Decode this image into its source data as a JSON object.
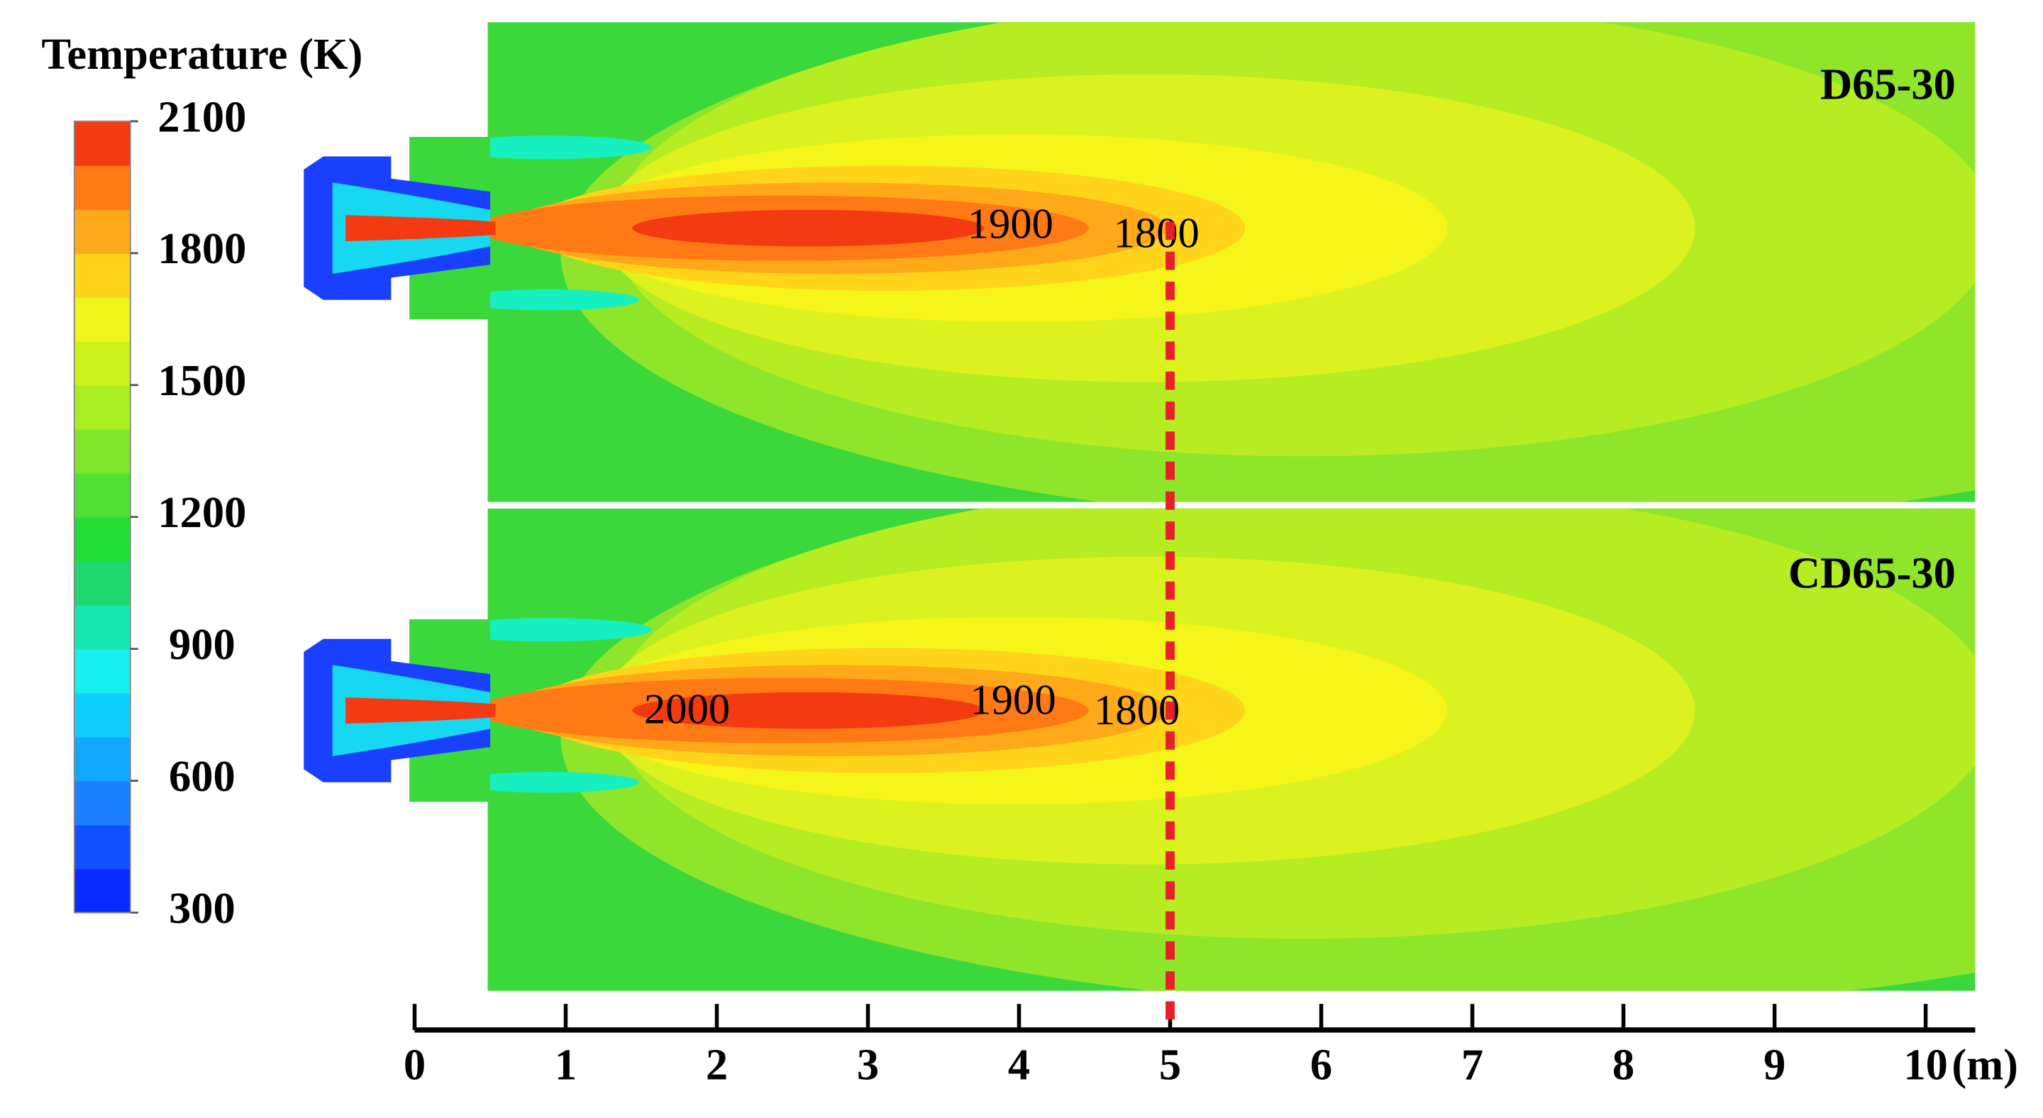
{
  "chart_data": {
    "type": "contour",
    "colorbar": {
      "title": "Temperature (K)",
      "clim": [
        300,
        2100
      ],
      "ticks": [
        300,
        600,
        900,
        1200,
        1500,
        1800,
        2100
      ],
      "colors": [
        "#0a2bff",
        "#1250ff",
        "#1a80ff",
        "#11a8ff",
        "#10cfff",
        "#16f0f0",
        "#15e8b0",
        "#20d870",
        "#22dd33",
        "#4ee033",
        "#7ee52a",
        "#a8ee20",
        "#ccf21a",
        "#f0f51a",
        "#ffd419",
        "#ffa818",
        "#ff7a14",
        "#f33a10"
      ]
    },
    "panels": [
      {
        "label": "D65-30",
        "contour_labels": [
          1900,
          1800
        ]
      },
      {
        "label": "CD65-30",
        "contour_labels": [
          2000,
          1900,
          1800
        ]
      }
    ],
    "xlim": [
      0,
      10
    ],
    "xticks": [
      0,
      1,
      2,
      3,
      4,
      5,
      6,
      7,
      8,
      9,
      10
    ],
    "x_unit": "(m)",
    "reference_line": {
      "x": 5,
      "color": "#e8202a"
    }
  }
}
